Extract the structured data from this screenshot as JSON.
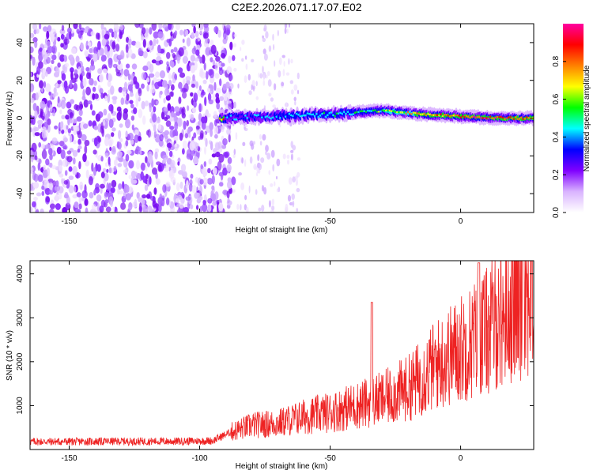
{
  "title": "C2E2.2026.071.17.07.E02",
  "chart_data": [
    {
      "type": "heatmap",
      "xlabel": "Height of straight line (km)",
      "ylabel": "Frequency (Hz)",
      "xlim": [
        -165,
        28
      ],
      "ylim": [
        -50,
        50
      ],
      "xticks": [
        -150,
        -100,
        -50,
        0
      ],
      "yticks": [
        -40,
        -20,
        0,
        20,
        40
      ],
      "colorbar": {
        "label": "Normalized spectral amplitude",
        "range": [
          0,
          1
        ],
        "ticks": [
          0.0,
          0.2,
          0.4,
          0.6,
          0.8
        ],
        "colors": [
          "#ffffff",
          "#d9b3ff",
          "#8000ff",
          "#0000ff",
          "#00ffff",
          "#00ff00",
          "#ffff00",
          "#ff8000",
          "#ff0000",
          "#ff00a0"
        ]
      },
      "noise_region_x": [
        -165,
        -87
      ],
      "signal_track": [
        {
          "x": -90,
          "freq": 0,
          "amp": 0.35
        },
        {
          "x": -70,
          "freq": 1,
          "amp": 0.4
        },
        {
          "x": -50,
          "freq": 2,
          "amp": 0.45
        },
        {
          "x": -30,
          "freq": 4,
          "amp": 0.55
        },
        {
          "x": -15,
          "freq": 2,
          "amp": 0.75
        },
        {
          "x": 0,
          "freq": 1,
          "amp": 0.85
        },
        {
          "x": 15,
          "freq": 0,
          "amp": 0.85
        },
        {
          "x": 28,
          "freq": 0,
          "amp": 0.75
        }
      ]
    },
    {
      "type": "line",
      "xlabel": "Height of straight line (km)",
      "ylabel": "SNR (10 * v/v)",
      "xlim": [
        -165,
        28
      ],
      "ylim": [
        0,
        4300
      ],
      "xticks": [
        -150,
        -100,
        -50,
        0
      ],
      "yticks": [
        1000,
        2000,
        3000,
        4000
      ],
      "series": [
        {
          "name": "SNR",
          "color": "#ee2222",
          "x": [
            -165,
            -150,
            -130,
            -110,
            -95,
            -88,
            -80,
            -70,
            -60,
            -50,
            -40,
            -30,
            -20,
            -10,
            0,
            10,
            20,
            28
          ],
          "values": [
            180,
            180,
            185,
            185,
            200,
            400,
            550,
            600,
            750,
            850,
            1000,
            1150,
            1400,
            1900,
            2300,
            2700,
            3300,
            3600
          ],
          "peaks": [
            {
              "x": -34,
              "y": 3350
            },
            {
              "x": 7,
              "y": 4250
            },
            {
              "x": 24,
              "y": 4300
            }
          ]
        }
      ]
    }
  ]
}
